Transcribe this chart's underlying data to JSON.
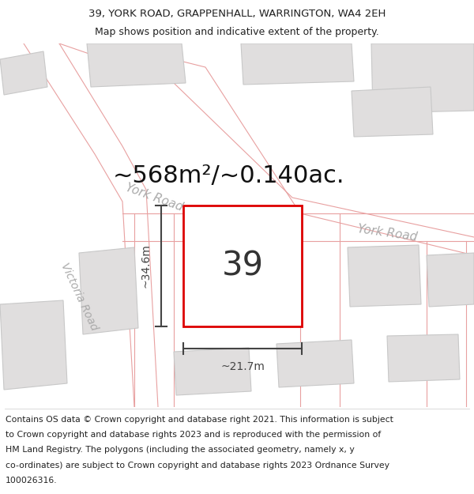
{
  "title_line1": "39, YORK ROAD, GRAPPENHALL, WARRINGTON, WA4 2EH",
  "title_line2": "Map shows position and indicative extent of the property.",
  "area_text": "~568m²/~0.140ac.",
  "property_number": "39",
  "dim_vertical": "~34.6m",
  "dim_horizontal": "~21.7m",
  "road_label_york_left": "York Road",
  "road_label_york_right": "York Road",
  "road_label_victoria": "Victoria Road",
  "footer_text": "Contains OS data © Crown copyright and database right 2021. This information is subject to Crown copyright and database rights 2023 and is reproduced with the permission of HM Land Registry. The polygons (including the associated geometry, namely x, y co-ordinates) are subject to Crown copyright and database rights 2023 Ordnance Survey 100026316.",
  "bg_color": "#ffffff",
  "road_line_color": "#e8a0a0",
  "road_label_color": "#aaaaaa",
  "property_fill": "#ffffff",
  "property_stroke": "#dd0000",
  "building_fill": "#e0dede",
  "building_stroke": "#c8c8c8",
  "dim_color": "#444444",
  "title_fontsize": 9.5,
  "subtitle_fontsize": 9,
  "area_fontsize": 22,
  "prop_num_fontsize": 30,
  "dim_fontsize": 10,
  "road_label_fontsize": 11,
  "victoria_label_fontsize": 10,
  "footer_fontsize": 7.8
}
